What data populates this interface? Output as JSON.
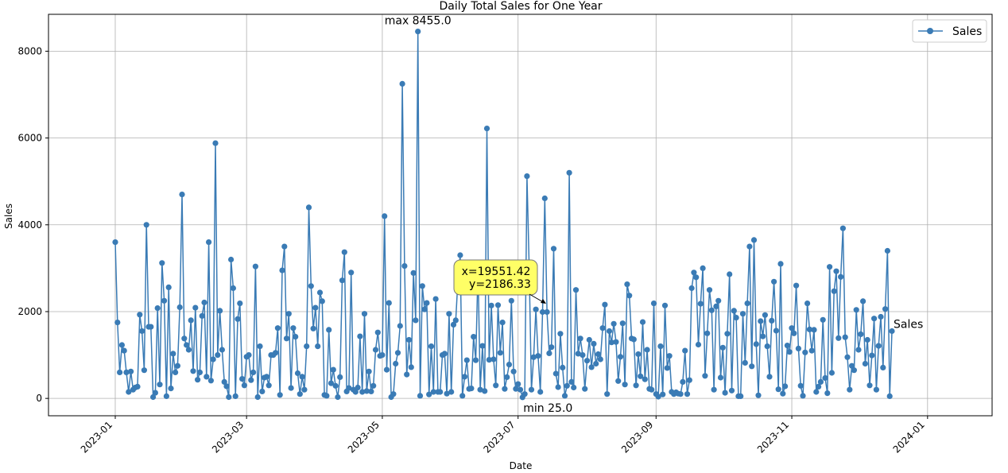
{
  "chart_data": {
    "type": "line",
    "title": "Daily Total Sales for One Year",
    "xlabel": "Date",
    "ylabel": "Sales",
    "x_start": "2023-01-01",
    "x_end": "2023-12-31",
    "xlim": [
      "2022-12-02",
      "2024-01-30"
    ],
    "ylim": [
      -400,
      8850
    ],
    "grid": true,
    "legend_position": "top-right",
    "x_ticks": [
      "2023-01",
      "2023-03",
      "2023-05",
      "2023-07",
      "2023-09",
      "2023-11",
      "2024-01"
    ],
    "y_ticks": [
      0,
      2000,
      4000,
      6000,
      8000
    ],
    "series": [
      {
        "name": "Sales",
        "color": "#3a7bb5",
        "marker": "circle",
        "values": [
          3600,
          1750,
          600,
          1230,
          1100,
          600,
          150,
          620,
          200,
          250,
          270,
          1930,
          1550,
          650,
          4000,
          1650,
          1650,
          30,
          130,
          2080,
          320,
          3120,
          2250,
          50,
          2560,
          230,
          1030,
          600,
          750,
          2100,
          4700,
          1380,
          1230,
          1120,
          1800,
          630,
          2090,
          430,
          600,
          1900,
          2210,
          500,
          3600,
          410,
          900,
          5880,
          1000,
          2020,
          1120,
          380,
          280,
          30,
          3200,
          2540,
          50,
          1830,
          2190,
          450,
          300,
          960,
          1000,
          420,
          600,
          3040,
          30,
          1200,
          160,
          480,
          500,
          300,
          1000,
          1000,
          1050,
          1620,
          80,
          2950,
          3500,
          1380,
          1950,
          240,
          1620,
          1420,
          580,
          100,
          500,
          200,
          1200,
          4400,
          2590,
          1610,
          2090,
          1200,
          2440,
          2240,
          80,
          60,
          1580,
          350,
          660,
          290,
          30,
          490,
          2720,
          3370,
          160,
          240,
          2900,
          200,
          150,
          250,
          1430,
          150,
          1950,
          170,
          620,
          160,
          290,
          1120,
          1520,
          980,
          1000,
          4200,
          660,
          2200,
          30,
          100,
          800,
          1050,
          1670,
          7250,
          3050,
          550,
          1350,
          720,
          2890,
          1800,
          8455,
          60,
          2590,
          2050,
          2200,
          90,
          1200,
          150,
          2290,
          150,
          150,
          1000,
          1030,
          110,
          1950,
          150,
          1700,
          1800,
          2750,
          3300,
          60,
          500,
          880,
          220,
          230,
          1420,
          880,
          3010,
          200,
          1210,
          170,
          6220,
          890,
          2140,
          900,
          300,
          2150,
          1050,
          1750,
          220,
          490,
          780,
          2250,
          620,
          220,
          330,
          200,
          25,
          100,
          5120,
          3000,
          200,
          950,
          2050,
          980,
          150,
          1990,
          4610,
          1990,
          1040,
          1180,
          3450,
          570,
          260,
          1490,
          710,
          60,
          290,
          5200,
          380,
          250,
          2500,
          1030,
          1380,
          1000,
          220,
          870,
          1350,
          720,
          1260,
          800,
          1020,
          900,
          1620,
          2160,
          100,
          1550,
          1290,
          1720,
          1300,
          400,
          960,
          1730,
          320,
          2630,
          2370,
          1380,
          1360,
          300,
          1020,
          510,
          1760,
          440,
          1120,
          220,
          200,
          2190,
          100,
          40,
          1200,
          90,
          2140,
          700,
          980,
          150,
          100,
          140,
          110,
          100,
          380,
          1100,
          100,
          420,
          2540,
          2900,
          2790,
          1240,
          2180,
          3000,
          520,
          1500,
          2500,
          2030,
          200,
          2120,
          2250,
          480,
          1170,
          130,
          1490,
          2860,
          180,
          2020,
          1860,
          50,
          50,
          1950,
          820,
          2190,
          3500,
          740,
          3650,
          1250,
          70,
          1780,
          1430,
          1920,
          1200,
          500,
          1790,
          2690,
          1560,
          210,
          3100,
          110,
          280,
          1220,
          1070,
          1620,
          1500,
          2600,
          1150,
          290,
          60,
          1060,
          2190,
          1590,
          1100,
          1580,
          150,
          270,
          380,
          1810,
          470,
          120,
          3030,
          590,
          2470,
          2930,
          1390,
          2800,
          3920,
          1410,
          950,
          200,
          750,
          650,
          2040,
          1120,
          1480,
          2240,
          800,
          1350,
          300,
          990,
          1840,
          200,
          1210,
          1880,
          710,
          2060,
          3400,
          50,
          1550
        ]
      }
    ],
    "annotations": {
      "max_label": "max 8455.0",
      "min_label": "min 25.0",
      "series_end_label": "Sales",
      "tooltip_x": "x=19551.42",
      "tooltip_y": "y=2186.33"
    },
    "tooltip_color": "#ffff66"
  }
}
